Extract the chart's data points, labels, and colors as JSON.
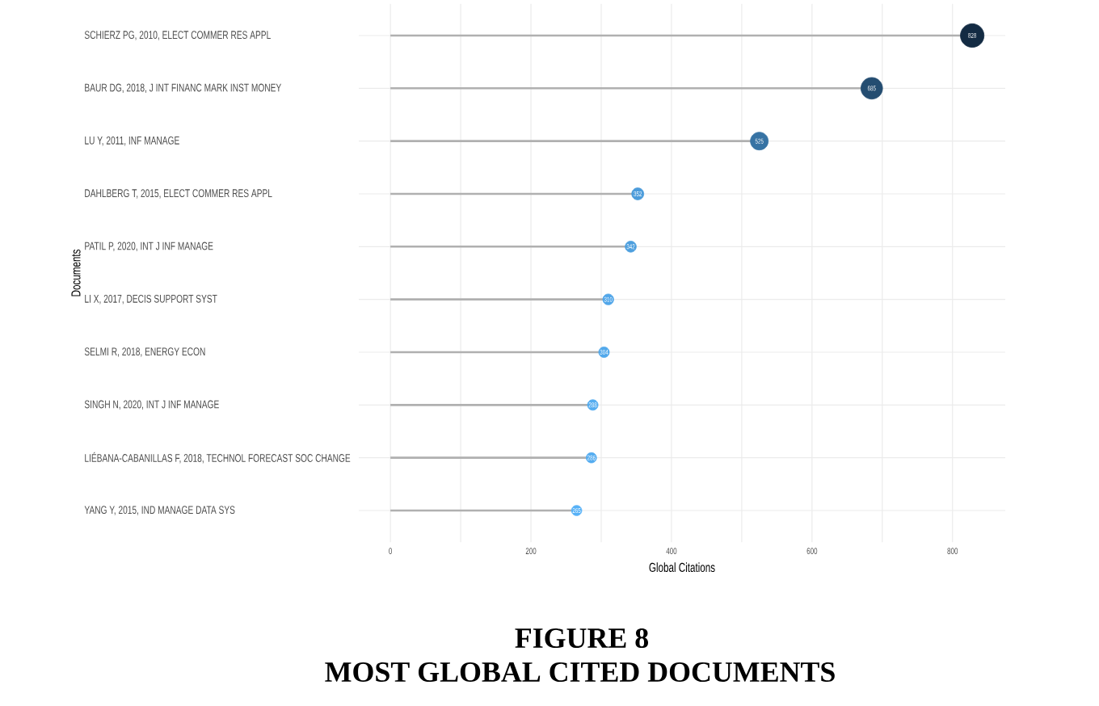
{
  "chart_data": {
    "type": "lollipop",
    "orientation": "horizontal",
    "title": "FIGURE 8",
    "subtitle": "MOST GLOBAL CITED DOCUMENTS",
    "xlabel": "Global Citations",
    "ylabel": "Documents",
    "categories": [
      "SCHIERZ PG, 2010, ELECT COMMER RES APPL",
      "BAUR DG, 2018, J INT FINANC MARK INST MONEY",
      "LU Y, 2011, INF MANAGE",
      "DAHLBERG T, 2015, ELECT COMMER RES APPL",
      "PATIL P, 2020, INT J INF MANAGE",
      "LI X, 2017, DECIS SUPPORT SYST",
      "SELMI R, 2018, ENERGY ECON",
      "SINGH N, 2020, INT J INF MANAGE",
      "LIÉBANA-CABANILLAS F, 2018, TECHNOL FORECAST SOC CHANGE",
      "YANG Y, 2015, IND MANAGE DATA SYS"
    ],
    "values": [
      828,
      685,
      525,
      352,
      342,
      310,
      304,
      288,
      286,
      265
    ],
    "sizes": [
      1,
      0.84,
      0.57,
      0.26,
      0.22,
      0.21,
      0.2,
      0.2,
      0.19,
      0.19
    ],
    "colors": [
      "#132b43",
      "#244d71",
      "#3773a4",
      "#4c9cdb",
      "#4d9fde",
      "#51a6e9",
      "#51a8eb",
      "#53acf0",
      "#54acf0",
      "#56b1f7"
    ],
    "xlim": [
      -45,
      875
    ],
    "xticks": [
      0,
      {
        "value": 100,
        "label": null
      },
      200,
      {
        "value": 300,
        "label": null
      },
      400,
      {
        "value": 500,
        "label": null
      },
      600,
      {
        "value": 700,
        "label": null
      },
      800
    ],
    "grid": true,
    "marker": "circle",
    "data_labels": true
  }
}
